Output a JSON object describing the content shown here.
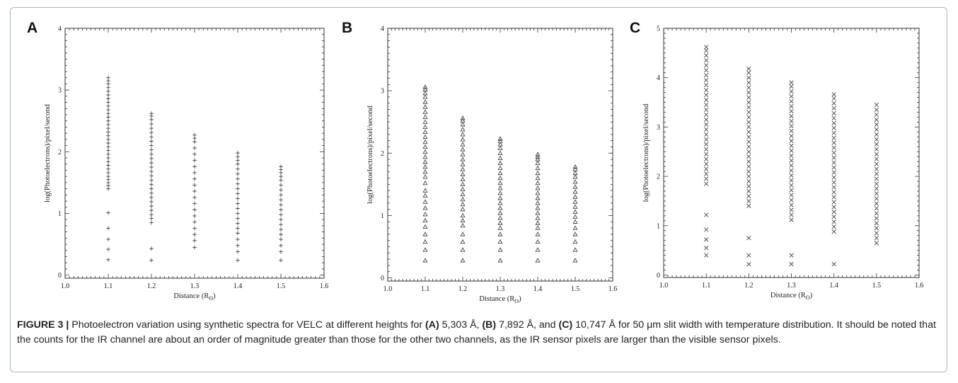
{
  "chart_data": [
    {
      "type": "scatter",
      "panel_label": "A",
      "xlabel": "Distance (R",
      "xlabel_sub": "ʘ",
      "xlabel_close": ")",
      "ylabel": "log(Photoelectrons)/pixel/second",
      "xlim": [
        1.0,
        1.6
      ],
      "ylim": [
        -0.05,
        4
      ],
      "xticks": [
        "1.0",
        "1.1",
        "1.2",
        "1.3",
        "1.4",
        "1.5",
        "1.6"
      ],
      "yticks": [
        "0",
        "1",
        "2",
        "3",
        "4"
      ],
      "marker": "plus",
      "grid": false,
      "x": [
        1.1,
        1.2,
        1.3,
        1.4,
        1.5
      ],
      "y": [
        [
          0.25,
          0.42,
          0.58,
          0.76,
          1.01,
          1.4,
          1.45,
          1.5,
          1.55,
          1.6,
          1.66,
          1.72,
          1.78,
          1.84,
          1.9,
          1.96,
          2.02,
          2.08,
          2.14,
          2.2,
          2.26,
          2.32,
          2.38,
          2.44,
          2.5,
          2.56,
          2.62,
          2.68,
          2.74,
          2.8,
          2.86,
          2.92,
          2.98,
          3.04,
          3.1,
          3.15,
          3.2
        ],
        [
          0.24,
          0.43,
          0.85,
          0.92,
          0.98,
          1.05,
          1.12,
          1.19,
          1.26,
          1.33,
          1.4,
          1.47,
          1.54,
          1.61,
          1.68,
          1.75,
          1.82,
          1.89,
          1.96,
          2.03,
          2.1,
          2.17,
          2.24,
          2.31,
          2.38,
          2.45,
          2.52,
          2.58,
          2.62
        ],
        [
          0.45,
          0.56,
          0.66,
          0.76,
          0.86,
          0.96,
          1.06,
          1.16,
          1.26,
          1.36,
          1.46,
          1.56,
          1.66,
          1.76,
          1.86,
          1.96,
          2.06,
          2.16,
          2.22,
          2.27
        ],
        [
          0.24,
          0.38,
          0.48,
          0.58,
          0.68,
          0.76,
          0.84,
          0.92,
          1.0,
          1.08,
          1.16,
          1.24,
          1.32,
          1.4,
          1.48,
          1.56,
          1.64,
          1.72,
          1.8,
          1.86,
          1.92,
          1.98
        ],
        [
          0.24,
          0.38,
          0.48,
          0.58,
          0.66,
          0.74,
          0.82,
          0.9,
          0.98,
          1.06,
          1.14,
          1.22,
          1.3,
          1.38,
          1.46,
          1.54,
          1.6,
          1.66,
          1.71,
          1.76
        ]
      ]
    },
    {
      "type": "scatter",
      "panel_label": "B",
      "xlabel": "Distance (R",
      "xlabel_sub": "ʘ",
      "xlabel_close": ")",
      "ylabel": "log(Photoelectrons)/pixel/second",
      "xlim": [
        1.0,
        1.6
      ],
      "ylim": [
        -0.05,
        4
      ],
      "xticks": [
        "1.0",
        "1.1",
        "1.2",
        "1.3",
        "1.4",
        "1.5",
        "1.6"
      ],
      "yticks": [
        "0",
        "1",
        "2",
        "3",
        "4"
      ],
      "marker": "triangle",
      "grid": false,
      "x": [
        1.1,
        1.2,
        1.3,
        1.4,
        1.5
      ],
      "y": [
        [
          0.28,
          0.45,
          0.58,
          0.7,
          0.82,
          0.92,
          1.02,
          1.12,
          1.22,
          1.32,
          1.4,
          1.52,
          1.62,
          1.7,
          1.78,
          1.86,
          1.94,
          2.02,
          2.1,
          2.18,
          2.26,
          2.34,
          2.42,
          2.5,
          2.58,
          2.66,
          2.74,
          2.82,
          2.9,
          2.96,
          3.02,
          3.06
        ],
        [
          0.28,
          0.45,
          0.58,
          0.7,
          0.84,
          0.92,
          1.0,
          1.1,
          1.18,
          1.26,
          1.34,
          1.42,
          1.5,
          1.58,
          1.66,
          1.74,
          1.82,
          1.9,
          1.98,
          2.06,
          2.14,
          2.22,
          2.3,
          2.38,
          2.46,
          2.52,
          2.56
        ],
        [
          0.28,
          0.45,
          0.58,
          0.7,
          0.8,
          0.88,
          0.96,
          1.04,
          1.12,
          1.2,
          1.28,
          1.36,
          1.44,
          1.52,
          1.6,
          1.68,
          1.76,
          1.84,
          1.92,
          2.0,
          2.08,
          2.14,
          2.19,
          2.23
        ],
        [
          0.28,
          0.45,
          0.58,
          0.7,
          0.8,
          0.88,
          0.96,
          1.04,
          1.12,
          1.2,
          1.28,
          1.36,
          1.44,
          1.52,
          1.6,
          1.68,
          1.76,
          1.84,
          1.9,
          1.94,
          1.98
        ],
        [
          0.28,
          0.45,
          0.58,
          0.7,
          0.8,
          0.9,
          0.98,
          1.06,
          1.14,
          1.22,
          1.3,
          1.38,
          1.46,
          1.54,
          1.62,
          1.68,
          1.74,
          1.78
        ]
      ]
    },
    {
      "type": "scatter",
      "panel_label": "C",
      "xlabel": "Distance (R",
      "xlabel_sub": "ʘ",
      "xlabel_close": ")",
      "ylabel": "log(Photoelectrons)/pixel/second",
      "xlim": [
        1.0,
        1.6
      ],
      "ylim": [
        -0.05,
        5
      ],
      "xticks": [
        "1.0",
        "1.1",
        "1.2",
        "1.3",
        "1.4",
        "1.5",
        "1.6"
      ],
      "yticks": [
        "0",
        "1",
        "2",
        "3",
        "4",
        "5"
      ],
      "marker": "x",
      "grid": false,
      "x": [
        1.1,
        1.2,
        1.3,
        1.4,
        1.5
      ],
      "y": [
        [
          0.4,
          0.55,
          0.72,
          0.92,
          1.22,
          1.85,
          1.95,
          2.05,
          2.15,
          2.25,
          2.35,
          2.45,
          2.55,
          2.65,
          2.75,
          2.85,
          2.95,
          3.05,
          3.15,
          3.25,
          3.35,
          3.45,
          3.55,
          3.65,
          3.75,
          3.85,
          3.95,
          4.05,
          4.15,
          4.25,
          4.35,
          4.45,
          4.55,
          4.62
        ],
        [
          0.22,
          0.4,
          0.75,
          1.4,
          1.5,
          1.6,
          1.7,
          1.8,
          1.9,
          2.0,
          2.1,
          2.2,
          2.3,
          2.4,
          2.5,
          2.6,
          2.7,
          2.8,
          2.9,
          3.0,
          3.1,
          3.2,
          3.3,
          3.4,
          3.5,
          3.6,
          3.7,
          3.8,
          3.9,
          4.0,
          4.1,
          4.18
        ],
        [
          0.22,
          0.4,
          1.12,
          1.22,
          1.32,
          1.42,
          1.52,
          1.62,
          1.72,
          1.82,
          1.92,
          2.02,
          2.12,
          2.22,
          2.32,
          2.42,
          2.52,
          2.62,
          2.72,
          2.82,
          2.92,
          3.02,
          3.12,
          3.22,
          3.32,
          3.42,
          3.52,
          3.62,
          3.72,
          3.82,
          3.9
        ],
        [
          0.22,
          0.88,
          0.98,
          1.08,
          1.18,
          1.28,
          1.38,
          1.48,
          1.58,
          1.68,
          1.78,
          1.88,
          1.98,
          2.08,
          2.18,
          2.28,
          2.38,
          2.48,
          2.58,
          2.68,
          2.78,
          2.88,
          2.98,
          3.08,
          3.18,
          3.28,
          3.38,
          3.48,
          3.58,
          3.66
        ],
        [
          0.65,
          0.75,
          0.85,
          0.95,
          1.05,
          1.15,
          1.25,
          1.35,
          1.45,
          1.55,
          1.65,
          1.75,
          1.85,
          1.95,
          2.05,
          2.15,
          2.25,
          2.35,
          2.45,
          2.55,
          2.65,
          2.75,
          2.85,
          2.95,
          3.05,
          3.15,
          3.25,
          3.35,
          3.45
        ]
      ]
    }
  ],
  "caption": {
    "lead": "FIGURE 3 |",
    "t1": " Photoelectron variation using synthetic spectra for VELC at different heights for ",
    "a": "(A)",
    "t2": " 5,303 Å, ",
    "b": "(B)",
    "t3": " 7,892 Å, and ",
    "c": "(C)",
    "t4": " 10,747 Å for 50 μm slit width with temperature distribution. It should be noted that the counts for the IR channel are about an order of magnitude greater than those for the other two channels, as the IR sensor pixels are larger than the visible sensor pixels."
  }
}
